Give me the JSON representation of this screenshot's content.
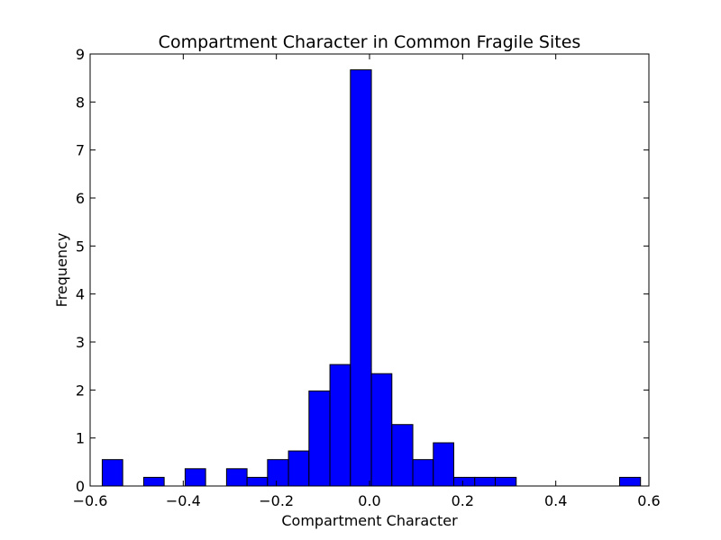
{
  "chart_data": {
    "type": "bar",
    "title": "Compartment Character in Common Fragile Sites",
    "xlabel": "Compartment Character",
    "ylabel": "Frequency",
    "xlim": [
      -0.6,
      0.6
    ],
    "ylim": [
      0,
      9
    ],
    "xticks": [
      -0.6,
      -0.4,
      -0.2,
      0.0,
      0.2,
      0.4,
      0.6
    ],
    "xtick_labels": [
      "−0.6",
      "−0.4",
      "−0.2",
      "0.0",
      "0.2",
      "0.4",
      "0.6"
    ],
    "yticks": [
      0,
      1,
      2,
      3,
      4,
      5,
      6,
      7,
      8,
      9
    ],
    "ytick_labels": [
      "0",
      "1",
      "2",
      "3",
      "4",
      "5",
      "6",
      "7",
      "8",
      "9"
    ],
    "bar_color": "#0000ff",
    "edge_color": "#000000",
    "grid": false,
    "bins": [
      {
        "start": -0.574,
        "end": -0.53,
        "value": 0.55
      },
      {
        "start": -0.53,
        "end": -0.485,
        "value": 0.0
      },
      {
        "start": -0.485,
        "end": -0.441,
        "value": 0.18
      },
      {
        "start": -0.441,
        "end": -0.396,
        "value": 0.0
      },
      {
        "start": -0.396,
        "end": -0.352,
        "value": 0.36
      },
      {
        "start": -0.352,
        "end": -0.307,
        "value": 0.0
      },
      {
        "start": -0.307,
        "end": -0.263,
        "value": 0.36
      },
      {
        "start": -0.263,
        "end": -0.219,
        "value": 0.18
      },
      {
        "start": -0.219,
        "end": -0.174,
        "value": 0.55
      },
      {
        "start": -0.174,
        "end": -0.13,
        "value": 0.73
      },
      {
        "start": -0.13,
        "end": -0.085,
        "value": 1.98
      },
      {
        "start": -0.085,
        "end": -0.041,
        "value": 2.53
      },
      {
        "start": -0.041,
        "end": 0.004,
        "value": 8.67
      },
      {
        "start": 0.004,
        "end": 0.048,
        "value": 2.34
      },
      {
        "start": 0.048,
        "end": 0.093,
        "value": 1.28
      },
      {
        "start": 0.093,
        "end": 0.137,
        "value": 0.55
      },
      {
        "start": 0.137,
        "end": 0.181,
        "value": 0.9
      },
      {
        "start": 0.181,
        "end": 0.226,
        "value": 0.18
      },
      {
        "start": 0.226,
        "end": 0.27,
        "value": 0.18
      },
      {
        "start": 0.27,
        "end": 0.315,
        "value": 0.18
      },
      {
        "start": 0.315,
        "end": 0.359,
        "value": 0.0
      },
      {
        "start": 0.359,
        "end": 0.404,
        "value": 0.0
      },
      {
        "start": 0.404,
        "end": 0.448,
        "value": 0.0
      },
      {
        "start": 0.448,
        "end": 0.493,
        "value": 0.0
      },
      {
        "start": 0.493,
        "end": 0.537,
        "value": 0.0
      },
      {
        "start": 0.537,
        "end": 0.582,
        "value": 0.18
      }
    ]
  }
}
